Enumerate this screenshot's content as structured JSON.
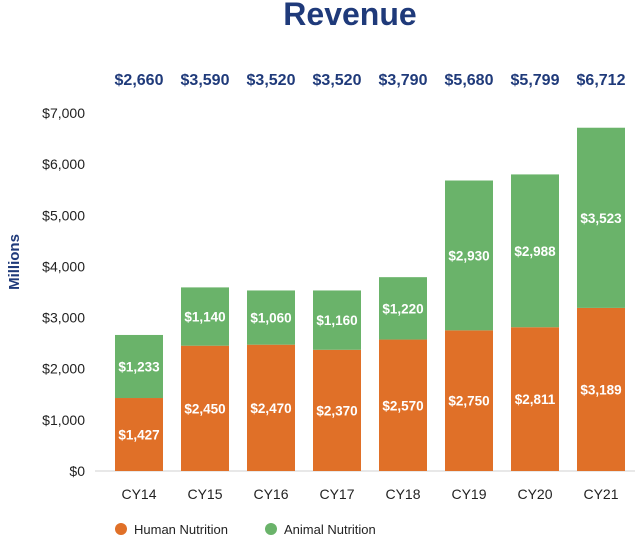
{
  "chart_data": {
    "type": "bar",
    "stacked": true,
    "title": "Revenue",
    "xlabel": "",
    "ylabel": "Millions",
    "ylim": [
      0,
      7000
    ],
    "yticks": [
      "$0",
      "$1,000",
      "$2,000",
      "$3,000",
      "$4,000",
      "$5,000",
      "$6,000",
      "$7,000"
    ],
    "ytick_values": [
      0,
      1000,
      2000,
      3000,
      4000,
      5000,
      6000,
      7000
    ],
    "categories": [
      "CY14",
      "CY15",
      "CY16",
      "CY17",
      "CY18",
      "CY19",
      "CY20",
      "CY21"
    ],
    "totals": [
      "$2,660",
      "$3,590",
      "$3,520",
      "$3,520",
      "$3,790",
      "$5,680",
      "$5,799",
      "$6,712"
    ],
    "series": [
      {
        "name": "Human Nutrition",
        "color": "#e07028",
        "values": [
          1427,
          2450,
          2470,
          2370,
          2570,
          2750,
          2811,
          3189
        ],
        "labels": [
          "$1,427",
          "$2,450",
          "$2,470",
          "$2,370",
          "$2,570",
          "$2,750",
          "$2,811",
          "$3,189"
        ]
      },
      {
        "name": "Animal Nutrition",
        "color": "#6ab36a",
        "values": [
          1233,
          1140,
          1060,
          1160,
          1220,
          2930,
          2988,
          3523
        ],
        "labels": [
          "$1,233",
          "$1,140",
          "$1,060",
          "$1,160",
          "$1,220",
          "$2,930",
          "$2,988",
          "$3,523"
        ]
      }
    ],
    "legend_position": "bottom-left",
    "grid": false
  }
}
